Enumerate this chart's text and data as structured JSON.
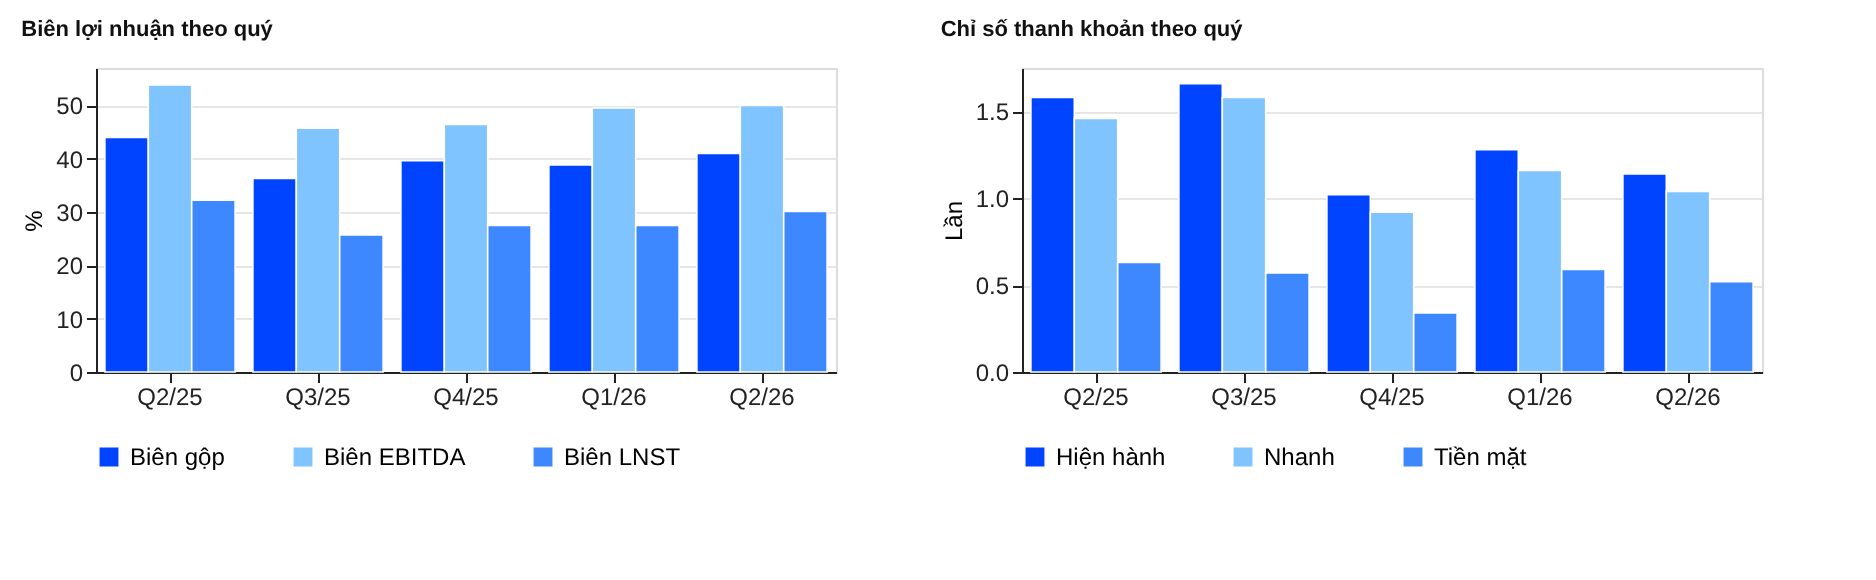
{
  "chart_data": [
    {
      "type": "bar",
      "title": "Biên lợi nhuận theo quý",
      "ylabel": "%",
      "categories": [
        "Q2/25",
        "Q3/25",
        "Q4/25",
        "Q1/26",
        "Q2/26"
      ],
      "series": [
        {
          "name": "Biên gộp",
          "color": "#0044ff",
          "values": [
            44.0,
            36.3,
            39.6,
            38.8,
            41.0
          ]
        },
        {
          "name": "Biên EBITDA",
          "color": "#80c4ff",
          "values": [
            53.8,
            45.7,
            46.4,
            49.5,
            50.0
          ]
        },
        {
          "name": "Biên LNST",
          "color": "#3d88ff",
          "values": [
            32.2,
            25.7,
            27.5,
            27.5,
            30.1
          ]
        }
      ],
      "ylim": [
        0,
        57
      ],
      "yticks": [
        0,
        10,
        20,
        30,
        40,
        50
      ],
      "grid": "y",
      "legend": "bottom"
    },
    {
      "type": "bar",
      "title": "Chỉ số thanh khoản theo quý",
      "ylabel": "Lần",
      "categories": [
        "Q2/25",
        "Q3/25",
        "Q4/25",
        "Q1/26",
        "Q2/26"
      ],
      "series": [
        {
          "name": "Hiện hành",
          "color": "#0044ff",
          "values": [
            1.58,
            1.66,
            1.02,
            1.28,
            1.14
          ]
        },
        {
          "name": "Nhanh",
          "color": "#80c4ff",
          "values": [
            1.46,
            1.58,
            0.92,
            1.16,
            1.04
          ]
        },
        {
          "name": "Tiền mặt",
          "color": "#3d88ff",
          "values": [
            0.63,
            0.57,
            0.34,
            0.59,
            0.52
          ]
        }
      ],
      "ylim": [
        0,
        1.75
      ],
      "yticks": [
        {
          "value": 0,
          "label": "0.0"
        },
        0.5,
        {
          "value": 1,
          "label": "1.0"
        },
        1.5
      ],
      "grid": "y",
      "legend": "bottom"
    }
  ]
}
